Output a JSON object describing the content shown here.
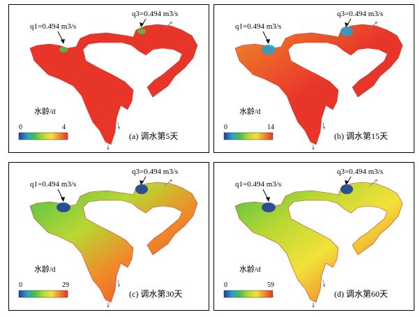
{
  "panels": [
    {
      "id": "a",
      "caption": "(a) 调水第5天",
      "legend": {
        "title": "水龄/d",
        "min": "0",
        "max": "4"
      },
      "q1_label": "q1=0.494 m3/s",
      "q3_label": "q3=0.494 m3/s",
      "stage": 0
    },
    {
      "id": "b",
      "caption": "(b) 调水第15天",
      "legend": {
        "title": "水龄/d",
        "min": "0",
        "max": "14"
      },
      "q1_label": "q1=0.494 m3/s",
      "q3_label": "q3=0.494 m3/s",
      "stage": 1
    },
    {
      "id": "c",
      "caption": "(c) 调水第30天",
      "legend": {
        "title": "水龄/d",
        "min": "0",
        "max": "29"
      },
      "q1_label": "q1=0.494 m3/s",
      "q3_label": "q3=0.494 m3/s",
      "stage": 2
    },
    {
      "id": "d",
      "caption": "(d) 调水第60天",
      "legend": {
        "title": "水龄/d",
        "min": "0",
        "max": "59"
      },
      "q1_label": "q1=0.494 m3/s",
      "q3_label": "q3=0.494 m3/s",
      "stage": 3
    }
  ],
  "colors": {
    "old_water": "#e8352a",
    "colorbar": [
      "#1f3f9a",
      "#2aa0c8",
      "#4cbf4a",
      "#b8d832",
      "#f2e23a",
      "#f08a2a",
      "#e8352a"
    ],
    "arrow": "#8a8a8a"
  }
}
